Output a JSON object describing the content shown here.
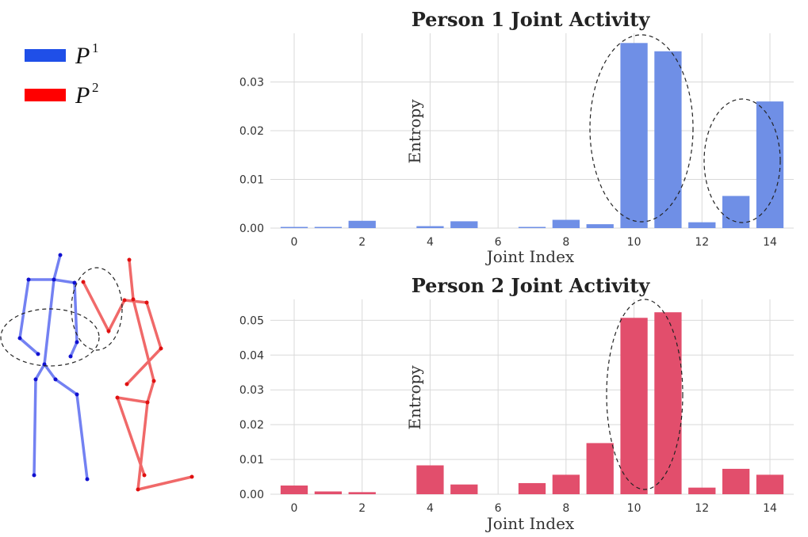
{
  "legend": {
    "items": [
      {
        "symbol": "P",
        "superscript": "1",
        "color": "#1f4fe8"
      },
      {
        "symbol": "P",
        "superscript": "2",
        "color": "#ff0000"
      }
    ]
  },
  "colors": {
    "person1_bar": "#6f8fe6",
    "person2_bar": "#e24e6c",
    "skeleton1": "#5b6cf0",
    "skeleton2": "#ee5050"
  },
  "chart_data": [
    {
      "type": "bar",
      "title": "Person 1 Joint Activity",
      "xlabel": "Joint Index",
      "ylabel": "Entropy",
      "categories": [
        0,
        1,
        2,
        3,
        4,
        5,
        6,
        7,
        8,
        9,
        10,
        11,
        12,
        13,
        14
      ],
      "values": [
        0.0002,
        0.0002,
        0.0015,
        0.0,
        0.0004,
        0.0014,
        0.0,
        0.0002,
        0.0017,
        0.0008,
        0.038,
        0.0363,
        0.0012,
        0.0066,
        0.026
      ],
      "xticks": [
        "0",
        "2",
        "4",
        "6",
        "8",
        "10",
        "12",
        "14"
      ],
      "yticks": [
        "0.00",
        "0.01",
        "0.02",
        "0.03"
      ],
      "ylim": [
        0,
        0.04
      ],
      "grid": true
    },
    {
      "type": "bar",
      "title": "Person 2 Joint Activity",
      "xlabel": "Joint Index",
      "ylabel": "Entropy",
      "categories": [
        0,
        1,
        2,
        3,
        4,
        5,
        6,
        7,
        8,
        9,
        10,
        11,
        12,
        13,
        14
      ],
      "values": [
        0.0025,
        0.0008,
        0.0006,
        0.0,
        0.0083,
        0.0028,
        0.0,
        0.0032,
        0.0056,
        0.0147,
        0.0507,
        0.0523,
        0.0019,
        0.0073,
        0.0056
      ],
      "xticks": [
        "0",
        "2",
        "4",
        "6",
        "8",
        "10",
        "12",
        "14"
      ],
      "yticks": [
        "0.00",
        "0.01",
        "0.02",
        "0.03",
        "0.04",
        "0.05"
      ],
      "ylim": [
        0,
        0.056
      ],
      "grid": true
    }
  ]
}
